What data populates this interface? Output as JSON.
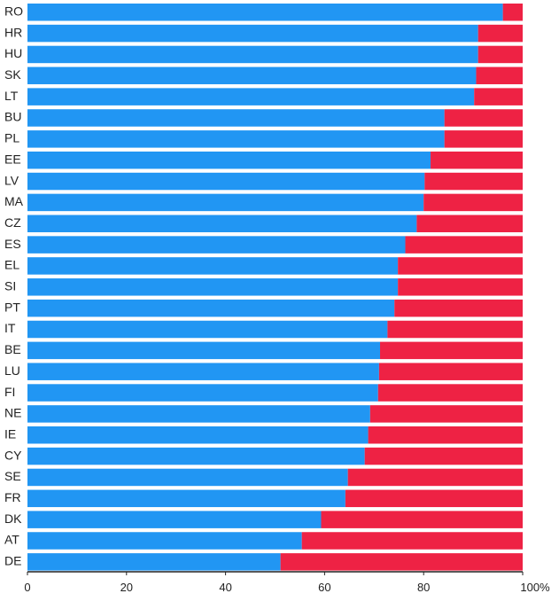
{
  "chart_data": {
    "type": "bar",
    "orientation": "horizontal",
    "stacked": true,
    "percent_stacked": true,
    "categories": [
      "RO",
      "HR",
      "HU",
      "SK",
      "LT",
      "BU",
      "PL",
      "EE",
      "LV",
      "MA",
      "CZ",
      "ES",
      "EL",
      "SI",
      "PT",
      "IT",
      "BE",
      "LU",
      "FI",
      "NE",
      "IE",
      "CY",
      "SE",
      "FR",
      "DK",
      "AT",
      "DE"
    ],
    "series": [
      {
        "color": "#2196f3",
        "values": [
          96,
          91,
          91,
          90.6,
          90.2,
          84.2,
          84.2,
          81.4,
          80.2,
          80,
          78.6,
          76.3,
          74.8,
          74.8,
          74.1,
          72.7,
          71.2,
          71,
          70.8,
          69.2,
          68.8,
          68.1,
          64.7,
          64.2,
          59.3,
          55.4,
          51.1
        ]
      },
      {
        "color": "#ee2244",
        "values": [
          4,
          9,
          9,
          9.4,
          9.8,
          15.8,
          15.8,
          18.6,
          19.8,
          20,
          21.4,
          23.7,
          25.2,
          25.2,
          25.9,
          27.3,
          28.8,
          29,
          29.2,
          30.8,
          31.2,
          31.9,
          35.3,
          35.8,
          40.7,
          44.6,
          48.9
        ]
      }
    ],
    "xlim": [
      0,
      100
    ],
    "xticks": [
      0,
      20,
      40,
      60,
      80,
      100
    ],
    "xtick_labels": [
      "0",
      "20",
      "40",
      "60",
      "80",
      "100%"
    ],
    "xlabel": "",
    "ylabel": "",
    "title": "",
    "legend": "none",
    "grid": false
  }
}
